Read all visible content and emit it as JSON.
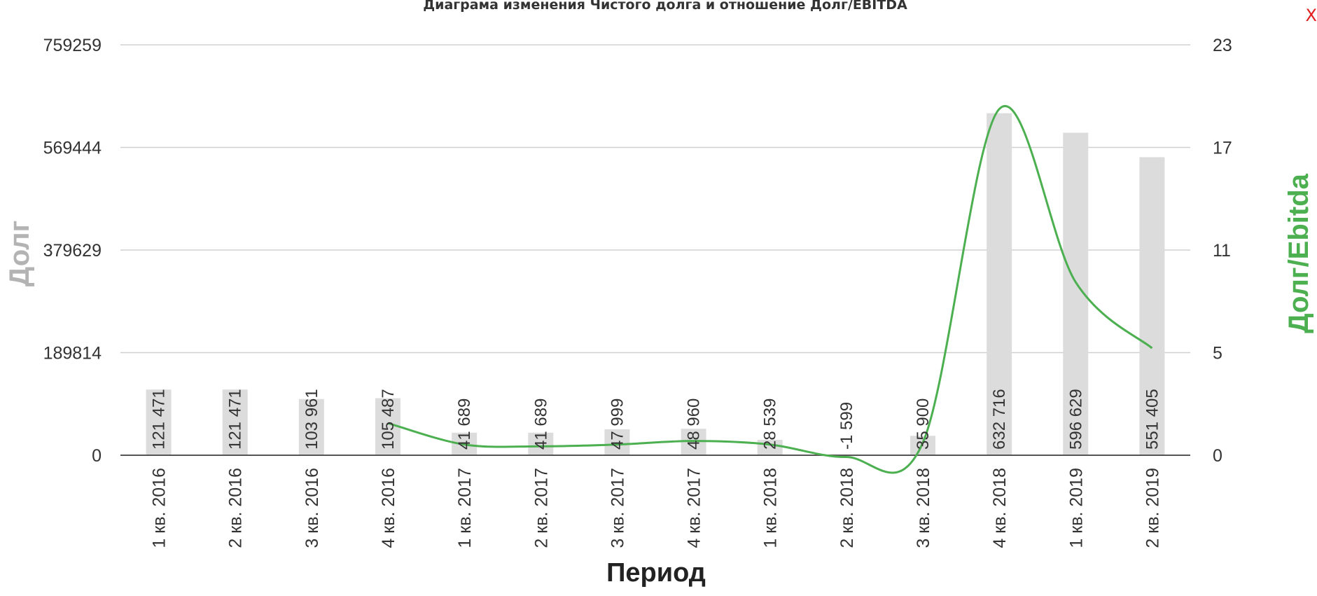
{
  "title": "Диаграма изменения Чистого долга и отношение Долг/EBITDA",
  "close_label": "X",
  "chart_data": {
    "type": "bar",
    "title": "Диаграма изменения Чистого долга и отношение Долг/EBITDA",
    "xlabel": "Период",
    "ylabel": "Долг",
    "ylabel_right": "Долг/Ebitda",
    "categories": [
      "1 кв. 2016",
      "2 кв. 2016",
      "3 кв. 2016",
      "4 кв. 2016",
      "1 кв. 2017",
      "2 кв. 2017",
      "3 кв. 2017",
      "4 кв. 2017",
      "1 кв. 2018",
      "2 кв. 2018",
      "3 кв. 2018",
      "4 кв. 2018",
      "1 кв. 2019",
      "2 кв. 2019"
    ],
    "ylim": [
      0,
      759259
    ],
    "yticks": [
      "0",
      "189814",
      "379629",
      "569444",
      "759259"
    ],
    "ylim_right": [
      0,
      23
    ],
    "yticks_right": [
      "0",
      "5",
      "11",
      "17",
      "23"
    ],
    "grid": true,
    "series": [
      {
        "name": "Долг",
        "type": "bar",
        "color": "#dcdcdc",
        "values": [
          121471,
          121471,
          103961,
          105487,
          41689,
          41689,
          47999,
          48960,
          28539,
          -1599,
          35900,
          632716,
          596629,
          551405
        ],
        "labels": [
          "121 471",
          "121 471",
          "103 961",
          "105 487",
          "41 689",
          "41 689",
          "47 999",
          "48 960",
          "28 539",
          "-1 599",
          "35 900",
          "632 716",
          "596 629",
          "551 405"
        ]
      },
      {
        "name": "Долг/Ebitda",
        "type": "line",
        "color": "#4caf50",
        "x": [
          "4 кв. 2016",
          "1 кв. 2017",
          "2 кв. 2017",
          "3 кв. 2017",
          "4 кв. 2017",
          "1 кв. 2018",
          "2 кв. 2018",
          "3 кв. 2018",
          "4 кв. 2018",
          "1 кв. 2019",
          "2 кв. 2019"
        ],
        "values": [
          1.8,
          0.6,
          0.5,
          0.6,
          0.8,
          0.6,
          -0.1,
          0.7,
          19.4,
          9.7,
          6.0
        ]
      }
    ],
    "colors": {
      "axis_left_title": "#b3b3b3",
      "axis_right_title": "#4caf50",
      "grid": "#d0d0d0",
      "baseline": "#555555"
    }
  }
}
